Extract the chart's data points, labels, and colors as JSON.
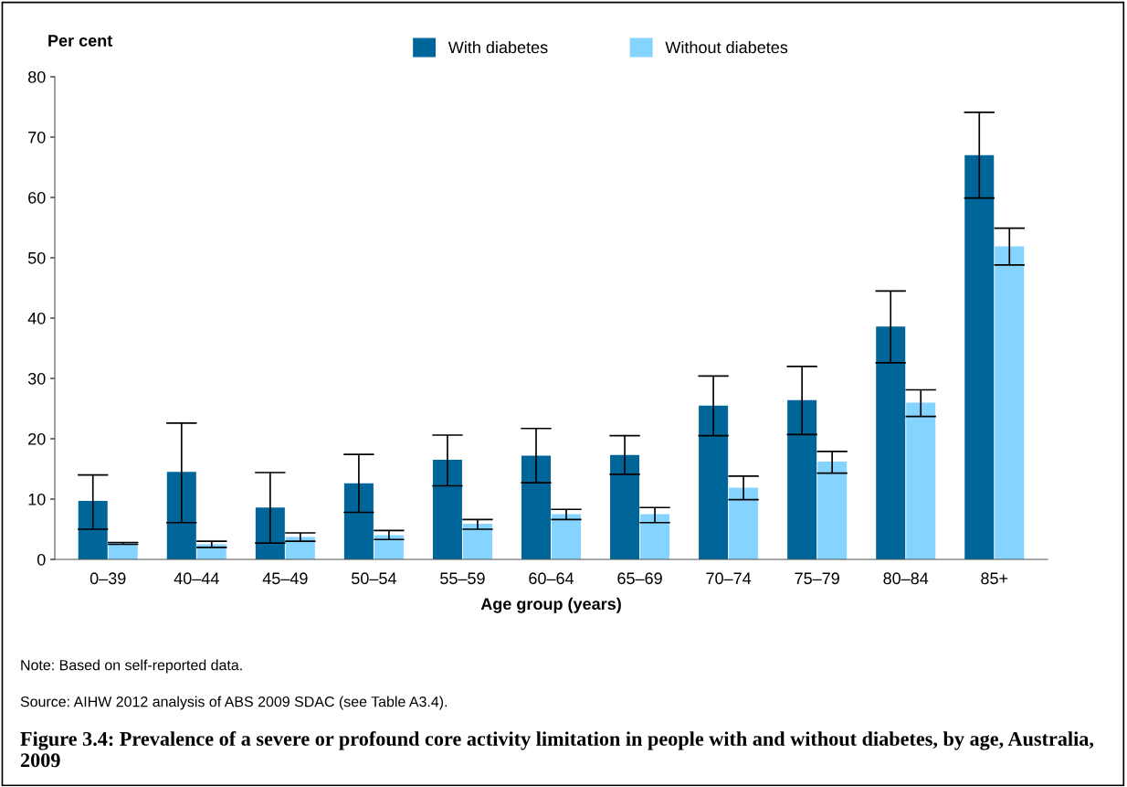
{
  "chart_data": {
    "type": "bar",
    "title": "Figure 3.4: Prevalence of a severe or profound core activity limitation in people with and without diabetes, by age, Australia, 2009",
    "xlabel": "Age group (years)",
    "ylabel": "Per cent",
    "categories": [
      "0–39",
      "40–44",
      "45–49",
      "50–54",
      "55–59",
      "60–64",
      "65–69",
      "70–74",
      "75–79",
      "80–84",
      "85+"
    ],
    "series": [
      {
        "name": "With diabetes",
        "color": "#006699",
        "values": [
          9.7,
          14.5,
          8.6,
          12.6,
          16.5,
          17.2,
          17.3,
          25.5,
          26.4,
          38.6,
          67.0
        ],
        "errors": [
          [
            5.0,
            14.0
          ],
          [
            6.1,
            22.6
          ],
          [
            2.7,
            14.4
          ],
          [
            7.8,
            17.4
          ],
          [
            12.2,
            20.6
          ],
          [
            12.7,
            21.7
          ],
          [
            14.1,
            20.5
          ],
          [
            20.5,
            30.4
          ],
          [
            20.7,
            32.0
          ],
          [
            32.6,
            44.5
          ],
          [
            59.9,
            74.1
          ]
        ]
      },
      {
        "name": "Without diabetes",
        "color": "#85d4ff",
        "values": [
          2.7,
          2.5,
          3.7,
          4.0,
          5.9,
          7.5,
          7.5,
          11.9,
          16.2,
          26.0,
          51.9
        ],
        "errors": [
          [
            2.5,
            2.8
          ],
          [
            2.0,
            3.0
          ],
          [
            3.0,
            4.4
          ],
          [
            3.3,
            4.8
          ],
          [
            5.0,
            6.6
          ],
          [
            6.6,
            8.3
          ],
          [
            6.1,
            8.6
          ],
          [
            9.9,
            13.8
          ],
          [
            14.3,
            17.9
          ],
          [
            23.7,
            28.1
          ],
          [
            48.8,
            54.9
          ]
        ]
      }
    ],
    "ylim": [
      0,
      80
    ],
    "yticks": [
      0,
      10,
      20,
      30,
      40,
      50,
      60,
      70,
      80
    ],
    "grid": false,
    "legend": "top",
    "annotations": [
      "Note: Based on self-reported data.",
      "Source: AIHW 2012 analysis of ABS 2009 SDAC (see Table A3.4)."
    ]
  }
}
